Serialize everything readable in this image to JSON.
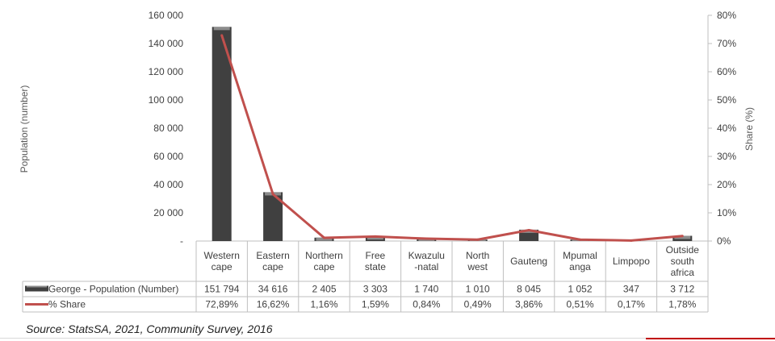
{
  "chart_data": {
    "type": "bar",
    "categories": [
      [
        "Western",
        "cape"
      ],
      [
        "Eastern",
        "cape"
      ],
      [
        "Northern",
        "cape"
      ],
      [
        "Free",
        "state"
      ],
      [
        "Kwazulu",
        "-natal"
      ],
      [
        "North",
        "west"
      ],
      [
        "Gauteng"
      ],
      [
        "Mpumal",
        "anga"
      ],
      [
        "Limpopo"
      ],
      [
        "Outside",
        "south",
        "africa"
      ]
    ],
    "series": [
      {
        "name": "George - Population (Number)",
        "type": "bar",
        "axis": "left",
        "values": [
          151794,
          34616,
          2405,
          3303,
          1740,
          1010,
          8045,
          1052,
          347,
          3712
        ],
        "labels": [
          "151 794",
          "34 616",
          "2 405",
          "3 303",
          "1 740",
          "1 010",
          "8 045",
          "1 052",
          "347",
          "3 712"
        ]
      },
      {
        "name": "% Share",
        "type": "line",
        "axis": "right",
        "values": [
          72.89,
          16.62,
          1.16,
          1.59,
          0.84,
          0.49,
          3.86,
          0.51,
          0.17,
          1.78
        ],
        "labels": [
          "72,89%",
          "16,62%",
          "1,16%",
          "1,59%",
          "0,84%",
          "0,49%",
          "3,86%",
          "0,51%",
          "0,17%",
          "1,78%"
        ]
      }
    ],
    "ylabel": "Population (number)",
    "y2label": "Share (%)",
    "ylim": [
      0,
      160000
    ],
    "y2lim": [
      0,
      80
    ],
    "yticks": [
      "-",
      "20 000",
      "40 000",
      "60 000",
      "80 000",
      "100 000",
      "120 000",
      "140 000",
      "160 000"
    ],
    "y2ticks": [
      "0%",
      "10%",
      "20%",
      "30%",
      "40%",
      "50%",
      "60%",
      "70%",
      "80%"
    ],
    "grid": false,
    "legend": "data-table",
    "colors": {
      "bar": "#404040",
      "bar_highlight": "#8c8c8c",
      "line": "#c0504d",
      "axis": "#bfbfbf",
      "accent": "#c00000"
    }
  },
  "source": "Source: StatsSA, 2021, Community Survey, 2016"
}
